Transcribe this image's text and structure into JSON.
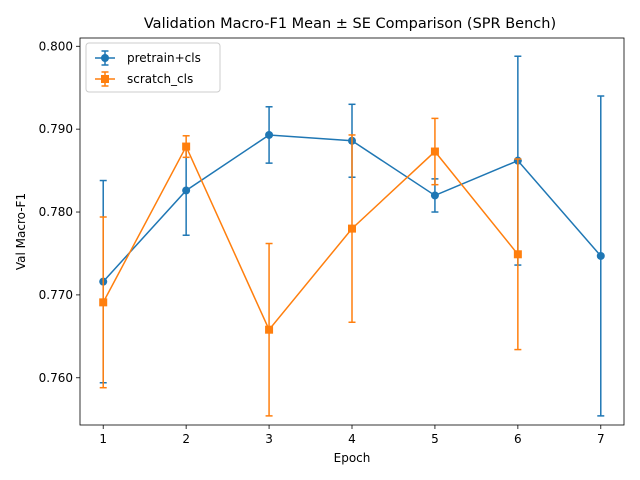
{
  "chart_data": {
    "type": "line",
    "title": "Validation Macro-F1 Mean ± SE Comparison (SPR Bench)",
    "xlabel": "Epoch",
    "ylabel": "Val Macro-F1",
    "xlim": [
      0.72,
      7.28
    ],
    "ylim": [
      0.7543,
      0.801
    ],
    "xticks": [
      1,
      2,
      3,
      4,
      5,
      6,
      7
    ],
    "yticks": [
      0.76,
      0.77,
      0.78,
      0.79,
      0.8
    ],
    "ytick_labels": [
      "0.760",
      "0.770",
      "0.780",
      "0.790",
      "0.800"
    ],
    "grid": false,
    "legend_position": "top-left",
    "series": [
      {
        "name": "pretrain+cls",
        "color": "#1f77b4",
        "marker": "circle",
        "x": [
          1,
          2,
          3,
          4,
          5,
          6,
          7
        ],
        "values": [
          0.7716,
          0.7826,
          0.7893,
          0.7886,
          0.782,
          0.7862,
          0.7747
        ],
        "err": [
          0.0122,
          0.0054,
          0.0034,
          0.0044,
          0.002,
          0.0126,
          0.0193
        ]
      },
      {
        "name": "scratch_cls",
        "color": "#ff7f0e",
        "marker": "square",
        "x": [
          1,
          2,
          3,
          4,
          5,
          6
        ],
        "values": [
          0.7691,
          0.7879,
          0.7658,
          0.778,
          0.7873,
          0.7749
        ],
        "err": [
          0.0103,
          0.0013,
          0.0104,
          0.0113,
          0.004,
          0.0115
        ]
      }
    ]
  }
}
